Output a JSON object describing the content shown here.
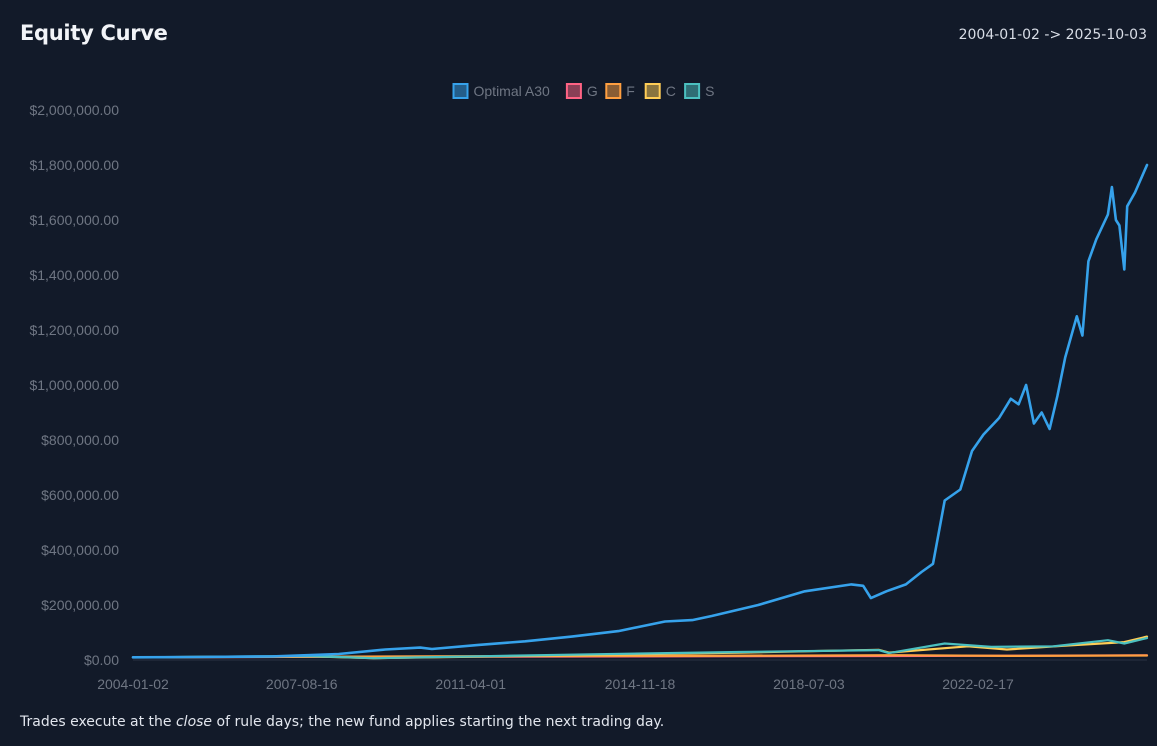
{
  "header": {
    "title": "Equity Curve",
    "date_range": "2004-01-02 -> 2025-10-03"
  },
  "footnote": {
    "before": "Trades execute at the ",
    "emphasis": "close",
    "after": " of rule days; the new fund applies starting the next trading day."
  },
  "chart_data": {
    "type": "line",
    "title": "Equity Curve",
    "xlabel": "",
    "ylabel": "",
    "x_ticks": [
      "2004-01-02",
      "2007-08-16",
      "2011-04-01",
      "2014-11-18",
      "2018-07-03",
      "2022-02-17"
    ],
    "y_ticks": [
      "$0.00",
      "$200,000.00",
      "$400,000.00",
      "$600,000.00",
      "$800,000.00",
      "$1,000,000.00",
      "$1,200,000.00",
      "$1,400,000.00",
      "$1,600,000.00",
      "$1,800,000.00",
      "$2,000,000.00"
    ],
    "xlim": [
      "2004-01-02",
      "2025-10-03"
    ],
    "ylim": [
      0,
      2000000
    ],
    "grid": false,
    "legend_position": "top-center",
    "series": [
      {
        "name": "Optimal A30",
        "color": "#36a2eb",
        "points": [
          [
            "2004-01-02",
            10000
          ],
          [
            "2005-06-01",
            11000
          ],
          [
            "2007-01-01",
            13000
          ],
          [
            "2008-06-01",
            22000
          ],
          [
            "2009-06-01",
            38000
          ],
          [
            "2010-03-01",
            45000
          ],
          [
            "2010-06-01",
            40000
          ],
          [
            "2011-06-01",
            55000
          ],
          [
            "2012-06-01",
            68000
          ],
          [
            "2013-06-01",
            85000
          ],
          [
            "2014-06-01",
            105000
          ],
          [
            "2015-06-01",
            140000
          ],
          [
            "2016-01-01",
            145000
          ],
          [
            "2016-06-01",
            160000
          ],
          [
            "2017-06-01",
            200000
          ],
          [
            "2018-06-01",
            250000
          ],
          [
            "2019-06-01",
            275000
          ],
          [
            "2019-09-01",
            270000
          ],
          [
            "2019-11-01",
            225000
          ],
          [
            "2020-03-01",
            250000
          ],
          [
            "2020-08-01",
            275000
          ],
          [
            "2020-12-01",
            320000
          ],
          [
            "2021-03-01",
            350000
          ],
          [
            "2021-06-01",
            580000
          ],
          [
            "2021-10-01",
            620000
          ],
          [
            "2022-01-01",
            760000
          ],
          [
            "2022-04-01",
            820000
          ],
          [
            "2022-08-01",
            880000
          ],
          [
            "2022-11-01",
            950000
          ],
          [
            "2023-01-01",
            930000
          ],
          [
            "2023-03-01",
            1000000
          ],
          [
            "2023-05-01",
            860000
          ],
          [
            "2023-07-01",
            900000
          ],
          [
            "2023-09-01",
            840000
          ],
          [
            "2023-11-01",
            960000
          ],
          [
            "2024-01-01",
            1100000
          ],
          [
            "2024-04-01",
            1250000
          ],
          [
            "2024-05-15",
            1180000
          ],
          [
            "2024-07-01",
            1450000
          ],
          [
            "2024-09-01",
            1530000
          ],
          [
            "2024-12-01",
            1620000
          ],
          [
            "2025-01-01",
            1720000
          ],
          [
            "2025-02-01",
            1600000
          ],
          [
            "2025-03-01",
            1580000
          ],
          [
            "2025-04-08",
            1420000
          ],
          [
            "2025-05-01",
            1650000
          ],
          [
            "2025-07-01",
            1700000
          ],
          [
            "2025-10-03",
            1800000
          ]
        ]
      },
      {
        "name": "G",
        "color": "#ff6384",
        "points": [
          [
            "2004-01-02",
            10000
          ],
          [
            "2008-01-01",
            11500
          ],
          [
            "2012-01-01",
            12500
          ],
          [
            "2016-01-01",
            13500
          ],
          [
            "2020-01-01",
            14500
          ],
          [
            "2023-01-01",
            15500
          ],
          [
            "2025-10-03",
            17000
          ]
        ]
      },
      {
        "name": "F",
        "color": "#ff9f40",
        "points": [
          [
            "2004-01-02",
            10000
          ],
          [
            "2008-01-01",
            12000
          ],
          [
            "2012-01-01",
            14000
          ],
          [
            "2016-01-01",
            15000
          ],
          [
            "2020-06-01",
            17500
          ],
          [
            "2022-10-01",
            15000
          ],
          [
            "2025-10-03",
            16500
          ]
        ]
      },
      {
        "name": "C",
        "color": "#ffcd56",
        "points": [
          [
            "2004-01-02",
            10000
          ],
          [
            "2007-10-01",
            13500
          ],
          [
            "2009-03-01",
            6500
          ],
          [
            "2011-06-01",
            12500
          ],
          [
            "2014-01-01",
            19000
          ],
          [
            "2017-01-01",
            27000
          ],
          [
            "2020-01-01",
            37000
          ],
          [
            "2020-03-20",
            27000
          ],
          [
            "2021-12-01",
            50000
          ],
          [
            "2022-10-01",
            38000
          ],
          [
            "2024-01-01",
            52000
          ],
          [
            "2025-04-08",
            65000
          ],
          [
            "2025-10-03",
            85000
          ]
        ]
      },
      {
        "name": "S",
        "color": "#4bc0c0",
        "points": [
          [
            "2004-01-02",
            10000
          ],
          [
            "2007-10-01",
            14500
          ],
          [
            "2009-03-01",
            6500
          ],
          [
            "2011-06-01",
            13500
          ],
          [
            "2014-01-01",
            21000
          ],
          [
            "2017-01-01",
            29000
          ],
          [
            "2020-01-01",
            36000
          ],
          [
            "2020-03-20",
            25000
          ],
          [
            "2021-06-01",
            60000
          ],
          [
            "2022-06-01",
            48000
          ],
          [
            "2023-10-01",
            50000
          ],
          [
            "2024-12-01",
            72000
          ],
          [
            "2025-04-08",
            60000
          ],
          [
            "2025-10-03",
            80000
          ]
        ]
      }
    ]
  }
}
